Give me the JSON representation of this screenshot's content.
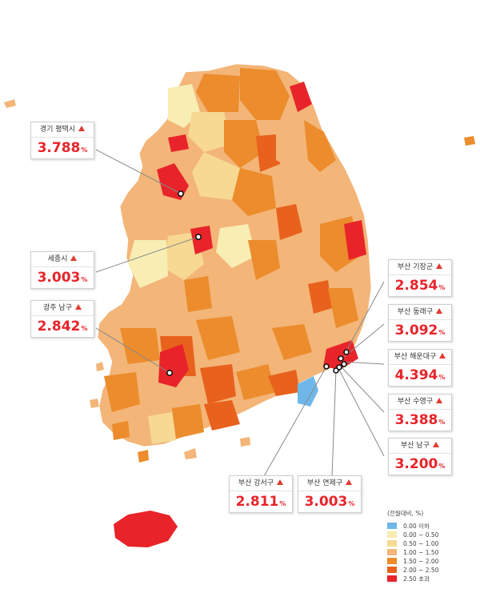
{
  "legend": {
    "title": "(전월대비, %)",
    "items": [
      {
        "label": "0.00 이하",
        "color": "#6fb7e9"
      },
      {
        "label": "0.00 ~ 0.50",
        "color": "#f8edb3"
      },
      {
        "label": "0.50 ~ 1.00",
        "color": "#f7d994"
      },
      {
        "label": "1.00 ~ 1.50",
        "color": "#f3b578"
      },
      {
        "label": "1.50 ~ 2.00",
        "color": "#ec8c2c"
      },
      {
        "label": "2.00 ~ 2.50",
        "color": "#e8621d"
      },
      {
        "label": "2.50 초과",
        "color": "#e8242a"
      }
    ]
  },
  "callouts": [
    {
      "id": "gyeonggi-pyeongtaek",
      "name": "경기 평택시",
      "value": "3.788",
      "unit": "%"
    },
    {
      "id": "sejong",
      "name": "세종시",
      "value": "3.003",
      "unit": "%"
    },
    {
      "id": "gwangju-nam",
      "name": "광주 남구",
      "value": "2.842",
      "unit": "%"
    },
    {
      "id": "busan-gijang",
      "name": "부산 기장군",
      "value": "2.854",
      "unit": "%"
    },
    {
      "id": "busan-dongnae",
      "name": "부산 동래구",
      "value": "3.092",
      "unit": "%"
    },
    {
      "id": "busan-haeundae",
      "name": "부산 해운대구",
      "value": "4.394",
      "unit": "%"
    },
    {
      "id": "busan-suyeong",
      "name": "부산 수영구",
      "value": "3.388",
      "unit": "%"
    },
    {
      "id": "busan-nam",
      "name": "부산 남구",
      "value": "3.200",
      "unit": "%"
    },
    {
      "id": "busan-gangseo",
      "name": "부산 강서구",
      "value": "2.811",
      "unit": "%"
    },
    {
      "id": "busan-yeonje",
      "name": "부산 연제구",
      "value": "3.003",
      "unit": "%"
    }
  ]
}
